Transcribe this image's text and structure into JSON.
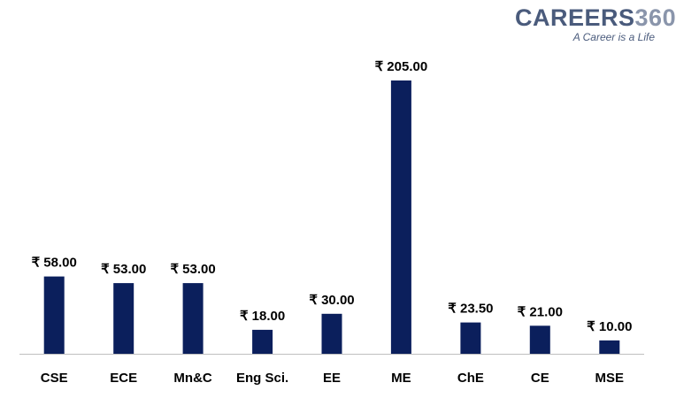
{
  "logo": {
    "brand_text": "CAREERS",
    "brand_number": "360",
    "tagline": "A Career is a Life"
  },
  "colors": {
    "bar": "#0b1f5c",
    "axis": "#bfbfbf",
    "logo": "#4a5b7c"
  },
  "chart_data": {
    "type": "bar",
    "title": "",
    "xlabel": "",
    "ylabel": "",
    "categories": [
      "CSE",
      "ECE",
      "Mn&C",
      "Eng Sci.",
      "EE",
      "ME",
      "ChE",
      "CE",
      "MSE"
    ],
    "values": [
      58.0,
      53.0,
      53.0,
      18.0,
      30.0,
      205.0,
      23.5,
      21.0,
      10.0
    ],
    "value_labels": [
      "₹ 58.00",
      "₹ 53.00",
      "₹ 53.00",
      "₹ 18.00",
      "₹ 30.00",
      "₹ 205.00",
      "₹ 23.50",
      "₹ 21.00",
      "₹ 10.00"
    ],
    "ylim": [
      0,
      210
    ],
    "grid": false,
    "legend": "none"
  }
}
